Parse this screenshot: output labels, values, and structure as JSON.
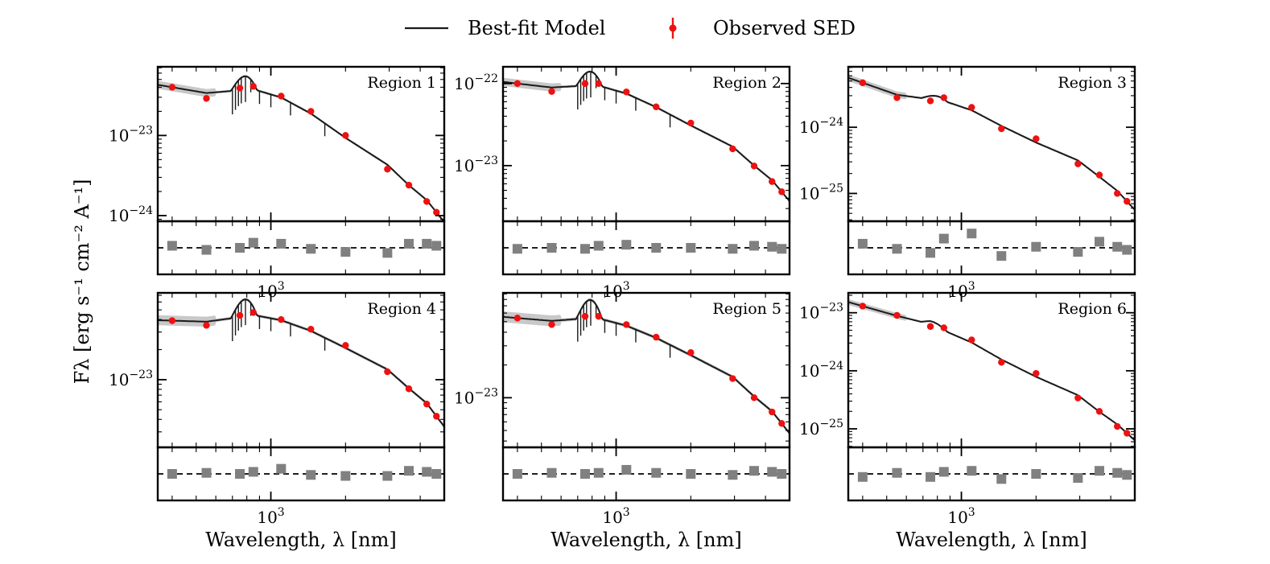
{
  "legend": {
    "model_label": "Best-fit Model",
    "observed_label": "Observed SED"
  },
  "y_axis_label": "Fλ [erg s⁻¹ cm⁻² A⁻¹]",
  "x_axis_label": "Wavelength, λ [nm]",
  "colors": {
    "model": "#1a1a1a",
    "model_band": "#b0b0b0",
    "observed": "#ee1111",
    "residual": "#808080"
  },
  "chart_data": [
    {
      "type": "scatter",
      "title": "Region 1",
      "xlabel": "",
      "ylabel": "",
      "x_scale": "log",
      "y_scale": "log",
      "xlim": [
        350,
        5000
      ],
      "ylim": [
        8.5e-25,
        7.2e-23
      ],
      "y_tick_labels": [
        "10⁻²³",
        "10⁻²⁴"
      ],
      "x_tick_label": "10³",
      "series": [
        {
          "name": "Observed SED",
          "x": [
            400,
            550,
            750,
            850,
            1100,
            1450,
            2000,
            2950,
            3600,
            4250,
            4650
          ],
          "y": [
            4e-23,
            2.9e-23,
            3.9e-23,
            4.1e-23,
            3.1e-23,
            2e-23,
            1e-23,
            3.8e-24,
            2.4e-24,
            1.5e-24,
            1.1e-24
          ]
        },
        {
          "name": "Residual",
          "x": [
            400,
            550,
            750,
            850,
            1100,
            1450,
            2000,
            2950,
            3600,
            4250,
            4650
          ],
          "y": [
            0.1,
            -0.1,
            0.0,
            0.25,
            0.2,
            -0.05,
            -0.2,
            -0.25,
            0.2,
            0.2,
            0.1
          ]
        }
      ]
    },
    {
      "type": "scatter",
      "title": "Region 2",
      "xlabel": "",
      "ylabel": "",
      "x_scale": "log",
      "y_scale": "log",
      "xlim": [
        350,
        5000
      ],
      "ylim": [
        2.1e-24,
        1.6e-22
      ],
      "y_tick_labels": [
        "10⁻²²",
        "10⁻²³"
      ],
      "x_tick_label": "10³",
      "series": [
        {
          "name": "Observed SED",
          "x": [
            400,
            550,
            750,
            850,
            1100,
            1450,
            2000,
            2950,
            3600,
            4250,
            4650
          ],
          "y": [
            1e-22,
            8e-23,
            1e-22,
            1e-22,
            7.9e-23,
            5.2e-23,
            3.3e-23,
            1.6e-23,
            9.9e-24,
            6.4e-24,
            4.8e-24
          ]
        },
        {
          "name": "Residual",
          "x": [
            400,
            550,
            750,
            850,
            1100,
            1450,
            2000,
            2950,
            3600,
            4250,
            4650
          ],
          "y": [
            -0.05,
            0.0,
            -0.05,
            0.1,
            0.15,
            0.0,
            0.0,
            -0.05,
            0.1,
            0.05,
            -0.05
          ]
        }
      ]
    },
    {
      "type": "scatter",
      "title": "Region 3",
      "xlabel": "",
      "ylabel": "",
      "x_scale": "log",
      "y_scale": "log",
      "xlim": [
        350,
        5000
      ],
      "ylim": [
        3.8e-26,
        8.2e-24
      ],
      "y_tick_labels": [
        "10⁻²⁴",
        "10⁻²⁵"
      ],
      "x_tick_label": "10³",
      "series": [
        {
          "name": "Observed SED",
          "x": [
            400,
            550,
            750,
            850,
            1100,
            1450,
            2000,
            2950,
            3600,
            4250,
            4650
          ],
          "y": [
            4.7e-24,
            2.8e-24,
            2.5e-24,
            2.8e-24,
            2e-24,
            9.5e-25,
            6.7e-25,
            2.8e-25,
            1.9e-25,
            1e-25,
            7.6e-26
          ]
        },
        {
          "name": "Residual",
          "x": [
            400,
            550,
            750,
            850,
            1100,
            1450,
            2000,
            2950,
            3600,
            4250,
            4650
          ],
          "y": [
            0.2,
            -0.05,
            -0.25,
            0.45,
            0.7,
            -0.4,
            0.05,
            -0.2,
            0.3,
            0.05,
            -0.1
          ]
        }
      ]
    },
    {
      "type": "scatter",
      "title": "Region 4",
      "xlabel": "",
      "ylabel": "",
      "x_scale": "log",
      "y_scale": "log",
      "xlim": [
        350,
        5000
      ],
      "ylim": [
        2.1e-24,
        7.4e-23
      ],
      "y_tick_labels": [
        "10⁻²³"
      ],
      "x_tick_label": "10³",
      "series": [
        {
          "name": "Observed SED",
          "x": [
            400,
            550,
            750,
            850,
            1100,
            1450,
            2000,
            2950,
            3600,
            4250,
            4650
          ],
          "y": [
            3.9e-23,
            3.5e-23,
            4.4e-23,
            4.7e-23,
            4e-23,
            3.2e-23,
            2.2e-23,
            1.2e-23,
            8.1e-24,
            5.7e-24,
            4.3e-24
          ]
        },
        {
          "name": "Residual",
          "x": [
            400,
            550,
            750,
            850,
            1100,
            1450,
            2000,
            2950,
            3600,
            4250,
            4650
          ],
          "y": [
            0.0,
            0.05,
            0.0,
            0.1,
            0.25,
            -0.05,
            -0.1,
            -0.1,
            0.15,
            0.1,
            0.0
          ]
        }
      ]
    },
    {
      "type": "scatter",
      "title": "Region 5",
      "xlabel": "",
      "ylabel": "",
      "x_scale": "log",
      "y_scale": "log",
      "xlim": [
        350,
        5000
      ],
      "ylim": [
        3.5e-24,
        9.2e-23
      ],
      "y_tick_labels": [
        "10⁻²³"
      ],
      "x_tick_label": "10³",
      "series": [
        {
          "name": "Observed SED",
          "x": [
            400,
            550,
            750,
            850,
            1100,
            1450,
            2000,
            2950,
            3600,
            4250,
            4650
          ],
          "y": [
            5.4e-23,
            4.7e-23,
            5.6e-23,
            5.6e-23,
            4.7e-23,
            3.6e-23,
            2.6e-23,
            1.5e-23,
            1e-23,
            7.4e-24,
            5.8e-24
          ]
        },
        {
          "name": "Residual",
          "x": [
            400,
            550,
            750,
            850,
            1100,
            1450,
            2000,
            2950,
            3600,
            4250,
            4650
          ],
          "y": [
            0.0,
            0.05,
            0.0,
            0.05,
            0.2,
            0.05,
            0.0,
            -0.05,
            0.15,
            0.1,
            0.0
          ]
        }
      ]
    },
    {
      "type": "scatter",
      "title": "Region 6",
      "xlabel": "",
      "ylabel": "",
      "x_scale": "log",
      "y_scale": "log",
      "xlim": [
        350,
        5000
      ],
      "ylim": [
        4.8e-26,
        2.2e-23
      ],
      "y_tick_labels": [
        "10⁻²³",
        "10⁻²⁴",
        "10⁻²⁵"
      ],
      "x_tick_label": "10³",
      "series": [
        {
          "name": "Observed SED",
          "x": [
            400,
            550,
            750,
            850,
            1100,
            1450,
            2000,
            2950,
            3600,
            4250,
            4650
          ],
          "y": [
            1.3e-23,
            9e-24,
            5.8e-24,
            5.5e-24,
            3.4e-24,
            1.4e-24,
            9e-25,
            3.4e-25,
            2e-25,
            1.1e-25,
            8.4e-26
          ]
        },
        {
          "name": "Residual",
          "x": [
            400,
            550,
            750,
            850,
            1100,
            1450,
            2000,
            2950,
            3600,
            4250,
            4650
          ],
          "y": [
            -0.15,
            0.05,
            -0.15,
            0.1,
            0.15,
            -0.25,
            0.0,
            -0.2,
            0.15,
            0.05,
            -0.05
          ]
        }
      ]
    }
  ]
}
